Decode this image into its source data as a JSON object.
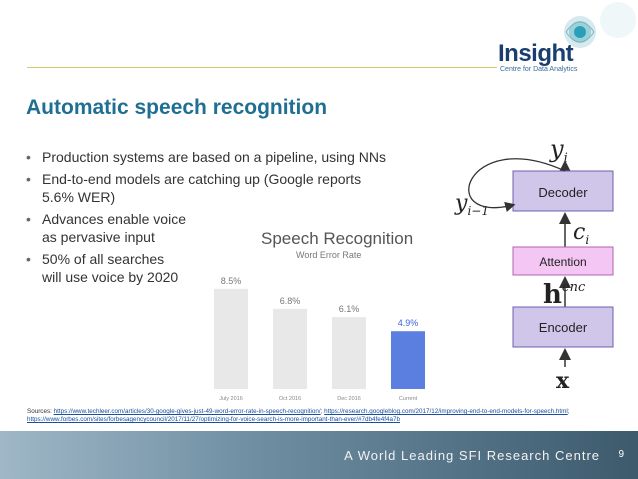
{
  "header": {
    "logo_text": "Insight",
    "logo_subtitle": "Centre for Data Analytics"
  },
  "slide": {
    "title": "Automatic speech recognition",
    "bullets": [
      {
        "lines": [
          "Production systems are based on a pipeline, using NNs"
        ]
      },
      {
        "lines": [
          "End-to-end models are catching up (Google reports",
          "5.6% WER)"
        ]
      },
      {
        "lines": [
          "Advances enable voice",
          "as pervasive input"
        ]
      },
      {
        "lines": [
          "50% of all searches",
          "will use voice by 2020"
        ]
      }
    ]
  },
  "chart_data": {
    "type": "bar",
    "title": "Speech Recognition",
    "subtitle": "Word Error Rate",
    "categories": [
      "July 2016",
      "Oct 2016",
      "Dec 2016",
      "Current"
    ],
    "values": [
      8.5,
      6.8,
      6.1,
      4.9
    ],
    "value_labels": [
      "8.5%",
      "6.8%",
      "6.1%",
      "4.9%"
    ],
    "colors": [
      "#e8e8e8",
      "#e8e8e8",
      "#e8e8e8",
      "#5b7fe0"
    ],
    "label_colors": [
      "#777777",
      "#777777",
      "#777777",
      "#3b63d6"
    ],
    "ylim": [
      0,
      9.5
    ]
  },
  "diagram": {
    "boxes": [
      {
        "name": "decoder",
        "label": "Decoder",
        "color": "#cfc6ea"
      },
      {
        "name": "attention",
        "label": "Attention",
        "color": "#f4c6f4"
      },
      {
        "name": "encoder",
        "label": "Encoder",
        "color": "#cfc6ea"
      }
    ],
    "labels": {
      "y_i": "y",
      "y_i_sub": "i",
      "y_prev": "y",
      "y_prev_sub": "i−1",
      "c_i": "c",
      "c_i_sub": "i",
      "h_enc": "h",
      "h_enc_sup": "enc",
      "x": "x"
    }
  },
  "sources": {
    "prefix": "Sources: ",
    "links": [
      "https://www.techleer.com/articles/30-google-gives-just-49-word-error-rate-in-speech-recognition/",
      "https://research.googleblog.com/2017/12/improving-end-to-end-models-for-speech.html",
      "https://www.forbes.com/sites/forbesagencycouncil/2017/11/27/optimizing-for-voice-search-is-more-important-than-ever/#7db4fe4f4a7b"
    ],
    "separator": "; "
  },
  "footer": {
    "tagline": "A World Leading SFI Research Centre",
    "page_number": "9"
  },
  "colors": {
    "title": "#1f6f93",
    "logo": "#1a3e6f",
    "header_line": "#d8c96a"
  }
}
